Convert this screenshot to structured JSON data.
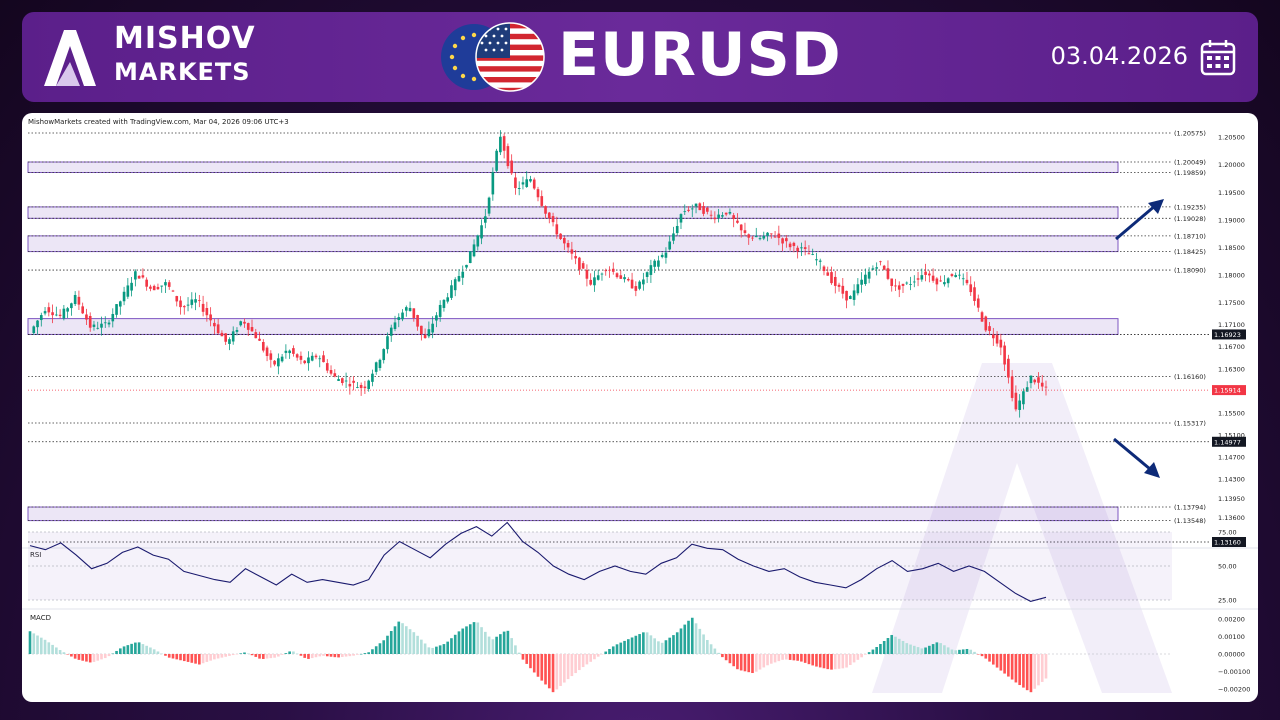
{
  "brand": {
    "line1": "MISHOV",
    "line2": "MARKETS"
  },
  "pair": "EURUSD",
  "date": "03.04.2026",
  "credit": "MishowMarkets created with TradingView.com, Mar 04, 2026 09:06 UTC+3",
  "icons": [
    "mishov-logo-icon",
    "eu-flag-icon",
    "us-flag-icon",
    "calendar-icon"
  ],
  "colors": {
    "up": "#089981",
    "down": "#f23645",
    "zone": "#7e57c2",
    "rsi": "#1a1a6e",
    "arrow": "#0d2a78"
  },
  "chart_data": {
    "type": "candlestick",
    "price_axis": {
      "ticks": [
        1.205,
        1.2,
        1.195,
        1.19,
        1.185,
        1.18,
        1.175,
        1.171,
        1.167,
        1.163,
        1.155,
        1.151,
        1.147,
        1.143,
        1.1395,
        1.136
      ],
      "tick_labels": [
        "1.20500",
        "1.20000",
        "1.19500",
        "1.19000",
        "1.18500",
        "1.18000",
        "1.17500",
        "1.17100",
        "1.16700",
        "1.16300",
        "1.15500",
        "1.15100",
        "1.14700",
        "1.14300",
        "1.13950",
        "1.13600"
      ]
    },
    "levels": [
      {
        "value": 1.20575,
        "label": "(1.20575)"
      },
      {
        "value": 1.20049,
        "label": "(1.20049)"
      },
      {
        "value": 1.19859,
        "label": "(1.19859)"
      },
      {
        "value": 1.19235,
        "label": "(1.19235)"
      },
      {
        "value": 1.19028,
        "label": "(1.19028)"
      },
      {
        "value": 1.1871,
        "label": "(1.18710)"
      },
      {
        "value": 1.18425,
        "label": "(1.18425)"
      },
      {
        "value": 1.1809,
        "label": "(1.18090)"
      },
      {
        "value": 1.1616,
        "label": "(1.16160)"
      },
      {
        "value": 1.15317,
        "label": "(1.15317)"
      },
      {
        "value": 1.13794,
        "label": "(1.13794)"
      },
      {
        "value": 1.13548,
        "label": "(1.13548)"
      }
    ],
    "highlight_levels": [
      {
        "value": 1.16923,
        "label": "1.16923"
      },
      {
        "value": 1.14977,
        "label": "1.14977"
      },
      {
        "value": 1.1316,
        "label": "1.13160"
      }
    ],
    "current_price": {
      "value": 1.15914,
      "label": "1.15914"
    },
    "zones": [
      [
        1.19859,
        1.20049
      ],
      [
        1.19028,
        1.19235
      ],
      [
        1.18425,
        1.1871
      ],
      [
        1.16923,
        1.1721
      ],
      [
        1.13548,
        1.13794
      ]
    ],
    "price_path": [
      1.1695,
      1.174,
      1.1725,
      1.176,
      1.1705,
      1.171,
      1.1755,
      1.1805,
      1.1775,
      1.1785,
      1.174,
      1.1755,
      1.1715,
      1.1675,
      1.172,
      1.1685,
      1.1635,
      1.1665,
      1.164,
      1.1655,
      1.1615,
      1.1605,
      1.1595,
      1.1645,
      1.1715,
      1.1745,
      1.168,
      1.174,
      1.1785,
      1.1835,
      1.1905,
      1.2055,
      1.1955,
      1.1975,
      1.1915,
      1.1865,
      1.1825,
      1.1785,
      1.1815,
      1.1795,
      1.1775,
      1.1815,
      1.1845,
      1.1915,
      1.1925,
      1.1905,
      1.1915,
      1.1875,
      1.1865,
      1.1875,
      1.1855,
      1.1845,
      1.1825,
      1.1785,
      1.1755,
      1.1795,
      1.1825,
      1.1775,
      1.1785,
      1.1805,
      1.1785,
      1.1805,
      1.1775,
      1.1705,
      1.1675,
      1.1555,
      1.1615,
      1.1591
    ],
    "rsi": {
      "label": "RSI",
      "levels": [
        75,
        50,
        25
      ],
      "tick_labels": [
        "75.00",
        "50.00",
        "25.00"
      ],
      "values": [
        65,
        62,
        67,
        58,
        48,
        52,
        60,
        64,
        58,
        55,
        46,
        43,
        40,
        38,
        48,
        42,
        36,
        44,
        38,
        40,
        38,
        36,
        40,
        58,
        68,
        62,
        56,
        66,
        74,
        79,
        72,
        82,
        68,
        60,
        50,
        44,
        40,
        46,
        50,
        46,
        44,
        52,
        56,
        66,
        63,
        62,
        55,
        50,
        46,
        48,
        42,
        38,
        36,
        34,
        40,
        48,
        54,
        46,
        48,
        52,
        46,
        50,
        46,
        38,
        30,
        24,
        27
      ]
    },
    "macd": {
      "label": "MACD",
      "tick_labels": [
        "0.00200",
        "0.00100",
        "0.00000",
        "−0.00100",
        "−0.00200"
      ],
      "ticks": [
        0.002,
        0.001,
        0,
        -0.001,
        -0.002
      ],
      "hist": [
        0.0013,
        0.0008,
        0.0002,
        -0.0003,
        -0.0005,
        -0.0002,
        0.0004,
        0.0007,
        0.0003,
        -0.0002,
        -0.0004,
        -0.0006,
        -0.0003,
        -0.0001,
        0.0001,
        -0.0003,
        -0.0002,
        0.0002,
        -0.0003,
        -0.0001,
        -0.0002,
        -0.0001,
        0.0001,
        0.0008,
        0.0019,
        0.0012,
        0.0003,
        0.0006,
        0.0014,
        0.0019,
        0.0008,
        0.0014,
        -0.0003,
        -0.0013,
        -0.0022,
        -0.0014,
        -0.0007,
        -0.0001,
        0.0005,
        0.0009,
        0.0013,
        0.0006,
        0.0012,
        0.0021,
        0.0008,
        -0.0002,
        -0.0009,
        -0.0011,
        -0.0006,
        -0.0003,
        -0.0004,
        -0.0007,
        -0.0009,
        -0.0008,
        -0.0002,
        0.0004,
        0.0011,
        0.0006,
        0.0003,
        0.0007,
        0.0002,
        0.0003,
        -0.0002,
        -0.0009,
        -0.0016,
        -0.0022,
        -0.0014
      ]
    }
  }
}
